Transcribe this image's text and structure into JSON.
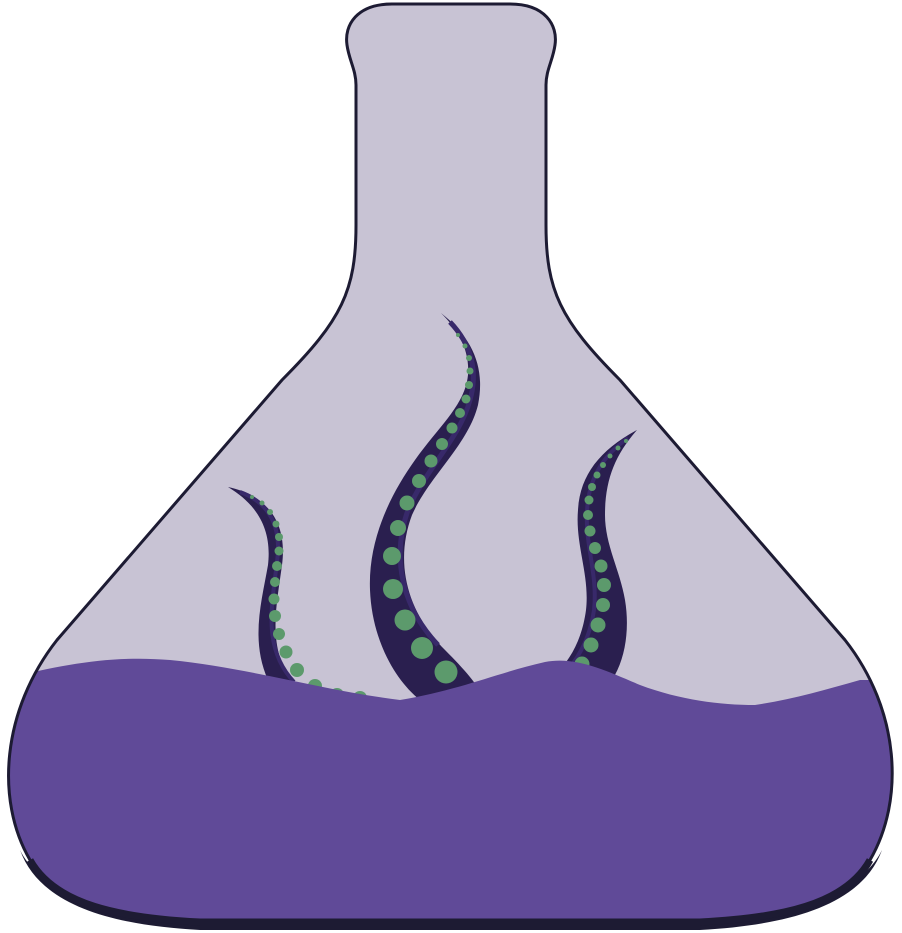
{
  "illustration": {
    "subject": "erlenmeyer-flask-with-tentacles",
    "colors": {
      "background": "#ffffff",
      "glass": "#c8c3d4",
      "outline": "#1d1b33",
      "liquid": "#604a98",
      "tentacle": "#2a1f4f",
      "tentacle_shade": "#38296a",
      "sucker": "#5c9a6c"
    },
    "tentacles": [
      {
        "name": "left-tentacle"
      },
      {
        "name": "center-tentacle"
      },
      {
        "name": "right-tentacle"
      }
    ]
  }
}
